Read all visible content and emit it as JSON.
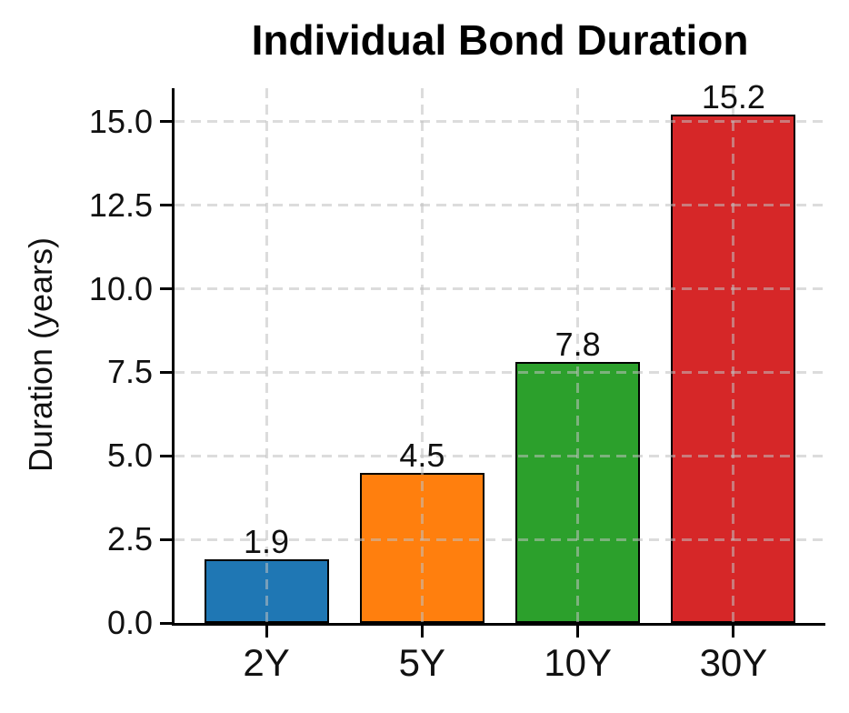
{
  "figure": {
    "title": "Individual Bond Duration"
  },
  "chart_data": {
    "type": "bar",
    "title": "Individual Bond Duration",
    "xlabel": "",
    "ylabel": "Duration (years)",
    "categories": [
      "2Y",
      "5Y",
      "10Y",
      "30Y"
    ],
    "values": [
      1.9,
      4.5,
      7.8,
      15.2
    ],
    "bar_labels": [
      "1.9",
      "4.5",
      "7.8",
      "15.2"
    ],
    "bar_colors": [
      "#1f77b4",
      "#ff7f0e",
      "#2ca02c",
      "#d62728"
    ],
    "bar_edge_color": "#000000",
    "ylim": [
      0,
      16
    ],
    "yticks": [
      0,
      2.5,
      5,
      7.5,
      10,
      12.5,
      15
    ],
    "ytick_labels": [
      "0.0",
      "2.5",
      "5.0",
      "7.5",
      "10.0",
      "12.5",
      "15.0"
    ],
    "grid": "both",
    "grid_style": "dashed",
    "grid_over_bars": true,
    "legend": "none",
    "text_color": "#111111"
  }
}
